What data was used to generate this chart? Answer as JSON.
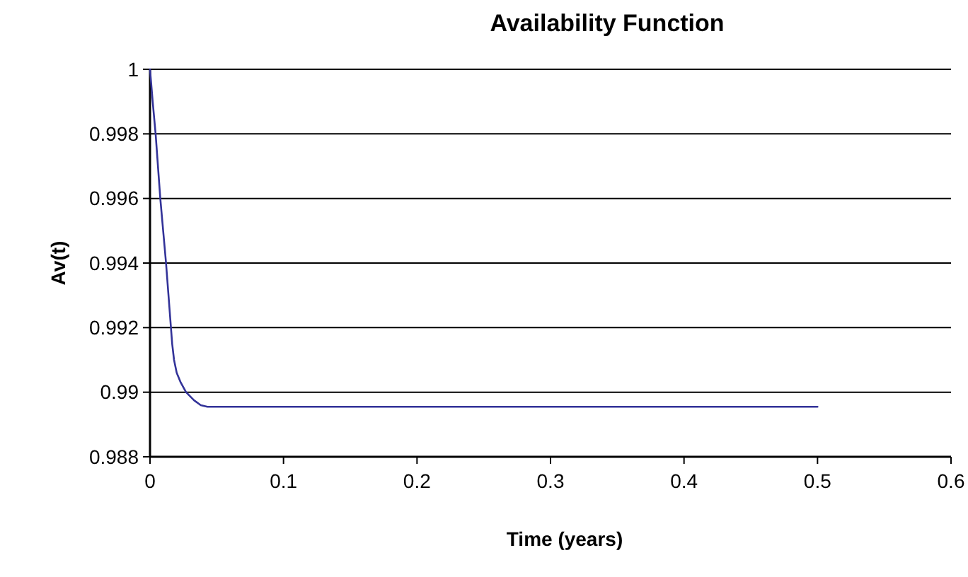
{
  "chart_data": {
    "type": "line",
    "title": "Availability Function",
    "xlabel": "Time (years)",
    "ylabel": "Av(t)",
    "series": [
      {
        "color": "#333399",
        "x": [
          0,
          0.002,
          0.0042,
          0.0077,
          0.012,
          0.0166,
          0.018,
          0.02,
          0.023,
          0.027,
          0.033,
          0.038,
          0.043,
          0.1,
          0.2,
          0.3,
          0.4,
          0.5
        ],
        "values": [
          1,
          0.999,
          0.998,
          0.996,
          0.994,
          0.9915,
          0.991,
          0.9906,
          0.9903,
          0.99,
          0.98975,
          0.9896,
          0.98955,
          0.98955,
          0.98955,
          0.98955,
          0.98955,
          0.98955
        ]
      }
    ],
    "xlim": [
      0,
      0.6
    ],
    "xticks": [
      0,
      0.1,
      0.2,
      0.3,
      0.4,
      0.5,
      0.6
    ],
    "ylim": [
      0.988,
      1
    ],
    "yticks": [
      0.988,
      0.99,
      0.992,
      0.994,
      0.996,
      0.998,
      1
    ],
    "grid": "y",
    "marker": "none",
    "line_style": "solid"
  }
}
